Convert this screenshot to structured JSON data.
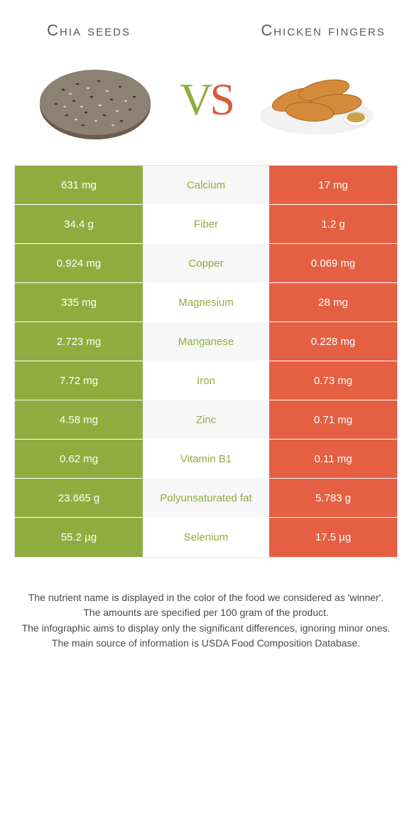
{
  "colors": {
    "green": "#8fad3e",
    "orange": "#e56042",
    "mid_text_green": "#8fad3e",
    "mid_bg_even": "#f7f7f7",
    "mid_bg_odd": "#ffffff"
  },
  "header": {
    "left": "Chia seeds",
    "right": "Chicken fingers"
  },
  "vs": {
    "v": "V",
    "s": "S"
  },
  "rows": [
    {
      "left": "631 mg",
      "label": "Calcium",
      "right": "17 mg",
      "label_color": "#8fad3e"
    },
    {
      "left": "34.4 g",
      "label": "Fiber",
      "right": "1.2 g",
      "label_color": "#8fad3e"
    },
    {
      "left": "0.924 mg",
      "label": "Copper",
      "right": "0.069 mg",
      "label_color": "#8fad3e"
    },
    {
      "left": "335 mg",
      "label": "Magnesium",
      "right": "28 mg",
      "label_color": "#8fad3e"
    },
    {
      "left": "2.723 mg",
      "label": "Manganese",
      "right": "0.228 mg",
      "label_color": "#8fad3e"
    },
    {
      "left": "7.72 mg",
      "label": "Iron",
      "right": "0.73 mg",
      "label_color": "#8fad3e"
    },
    {
      "left": "4.58 mg",
      "label": "Zinc",
      "right": "0.71 mg",
      "label_color": "#8fad3e"
    },
    {
      "left": "0.62 mg",
      "label": "Vitamin B1",
      "right": "0.11 mg",
      "label_color": "#8fad3e"
    },
    {
      "left": "23.665 g",
      "label": "Polyunsaturated fat",
      "right": "5.783 g",
      "label_color": "#8fad3e"
    },
    {
      "left": "55.2 µg",
      "label": "Selenium",
      "right": "17.5 µg",
      "label_color": "#8fad3e"
    }
  ],
  "footer": {
    "l1": "The nutrient name is displayed in the color of the food we considered as 'winner'.",
    "l2": "The amounts are specified per 100 gram of the product.",
    "l3": "The infographic aims to display only the significant differences, ignoring minor ones.",
    "l4": "The main source of information is USDA Food Composition Database."
  }
}
